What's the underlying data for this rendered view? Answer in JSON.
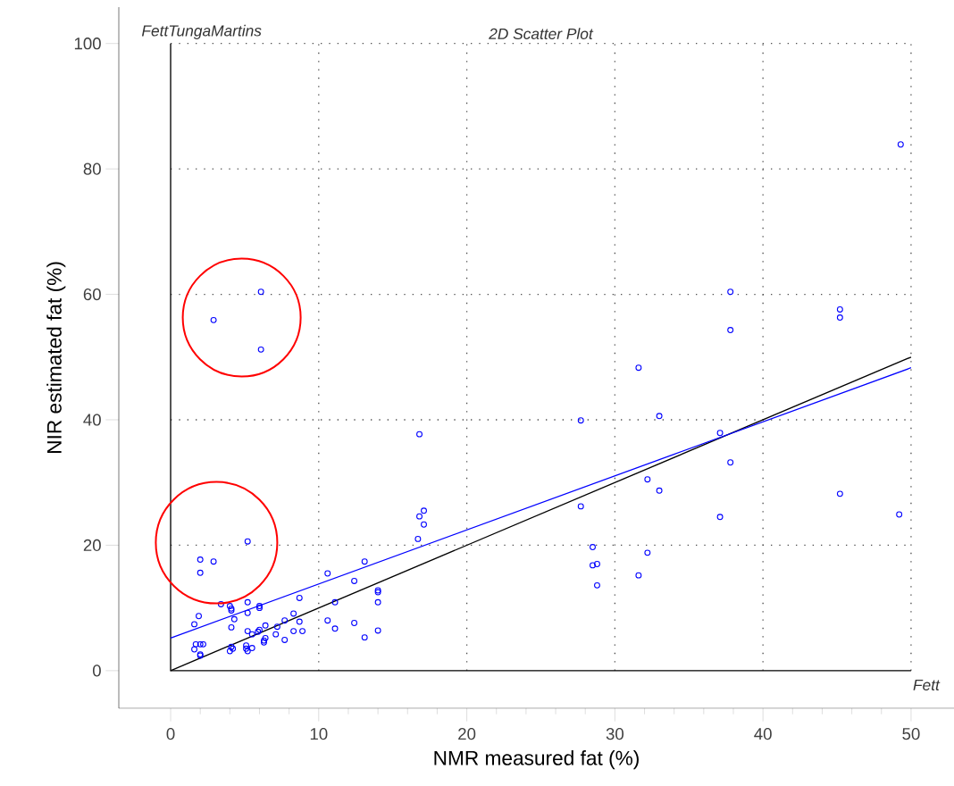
{
  "chart_data": {
    "type": "scatter",
    "title": "2D Scatter Plot",
    "xlabel": "NMR measured fat (%)",
    "ylabel": "NIR estimated fat (%)",
    "annotations": [
      "FettTungaMartins",
      "Fett"
    ],
    "xlim": [
      -3.5,
      52.9
    ],
    "ylim": [
      -6,
      105.8
    ],
    "xticks": [
      0,
      10,
      20,
      30,
      40,
      50
    ],
    "yticks": [
      0,
      20,
      40,
      60,
      80,
      100
    ],
    "grid": true,
    "marker": "circle",
    "series": [
      {
        "color": "#0000ff",
        "x": [
          5.2,
          2.0,
          2.9,
          2.0,
          3.4,
          4.0,
          4.1,
          4.1,
          5.2,
          6.0,
          6.0,
          5.2,
          1.9,
          1.6,
          4.3,
          4.1,
          8.7,
          8.3,
          7.7,
          8.7,
          7.2,
          6.4,
          6.0,
          5.9,
          5.2,
          5.5,
          7.1,
          8.3,
          8.9,
          7.7,
          6.4,
          6.3,
          6.3,
          10.6,
          13.1,
          12.4,
          11.1,
          10.6,
          11.1,
          12.4,
          13.1,
          14.0,
          14.0,
          14.0,
          14.0,
          16.7,
          16.8,
          17.1,
          17.1,
          16.8,
          1.7,
          2.0,
          2.2,
          1.6,
          2.0,
          2.0,
          4.1,
          4.2,
          4.0,
          5.1,
          5.1,
          5.2,
          5.5,
          27.7,
          33.0,
          37.1,
          37.8,
          32.2,
          33.0,
          27.7,
          37.1,
          45.2,
          49.2,
          28.5,
          32.2,
          28.5,
          28.8,
          31.6,
          28.8,
          49.3,
          6.1,
          2.9,
          6.1,
          37.8,
          37.8,
          45.2,
          45.2,
          31.6
        ],
        "values": [
          20.6,
          17.7,
          17.4,
          15.6,
          10.6,
          10.3,
          9.9,
          9.6,
          10.9,
          10.3,
          10.0,
          9.2,
          8.7,
          7.4,
          8.2,
          6.9,
          11.6,
          9.1,
          8.0,
          7.8,
          7.0,
          7.2,
          6.5,
          6.2,
          6.3,
          5.8,
          5.8,
          6.3,
          6.3,
          4.9,
          5.2,
          4.8,
          4.5,
          15.5,
          17.4,
          14.3,
          10.9,
          8.0,
          6.7,
          7.6,
          5.3,
          12.8,
          12.5,
          10.9,
          6.4,
          21.0,
          24.6,
          23.3,
          25.5,
          37.7,
          4.2,
          4.2,
          4.2,
          3.4,
          2.6,
          2.4,
          3.8,
          3.5,
          3.1,
          4.0,
          3.5,
          3.1,
          3.6,
          39.9,
          40.6,
          37.9,
          33.2,
          30.5,
          28.7,
          26.2,
          24.5,
          28.2,
          24.9,
          19.7,
          18.8,
          16.8,
          17.0,
          15.2,
          13.6,
          83.9,
          60.4,
          55.9,
          51.2,
          60.4,
          54.3,
          57.6,
          56.3,
          48.3
        ]
      },
      {
        "type": "line",
        "marker": "none",
        "color": "#000000",
        "x": [
          0,
          50
        ],
        "values": [
          0,
          50
        ]
      },
      {
        "type": "line",
        "marker": "none",
        "color": "#0000ff",
        "x": [
          0,
          50
        ],
        "values": [
          5.2,
          48.3
        ]
      }
    ]
  }
}
